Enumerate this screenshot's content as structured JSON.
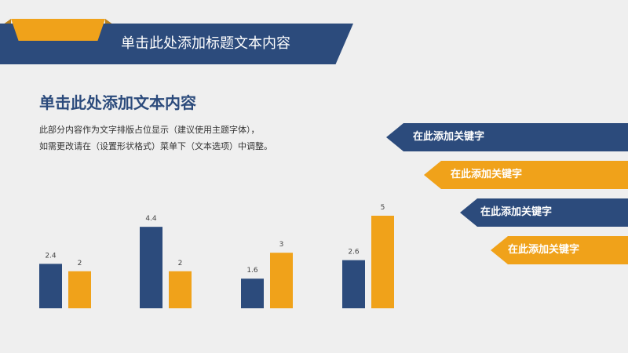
{
  "title": "单击此处添加标题文本内容",
  "heading": "单击此处添加文本内容",
  "description": [
    "此部分内容作为文字排版占位显示（建议使用主题字体），",
    "如需更改请在（设置形状格式）菜单下（文本选项）中调整。"
  ],
  "keywords": [
    {
      "label": "在此添加关键字",
      "color": "#2c4b7c"
    },
    {
      "label": "在此添加关键字",
      "color": "#f0a21a"
    },
    {
      "label": "在此添加关键字",
      "color": "#2c4b7c"
    },
    {
      "label": "在此添加关键字",
      "color": "#f0a21a"
    }
  ],
  "colors": {
    "blue": "#2c4b7c",
    "orange": "#f0a21a",
    "background": "#efefef"
  },
  "chart_data": {
    "type": "bar",
    "categories": [
      "",
      "",
      "",
      ""
    ],
    "series": [
      {
        "values": [
          2.4,
          4.4,
          1.6,
          2.6
        ],
        "color": "#2c4b7c",
        "labels": [
          "2.4",
          "4.4",
          "1.6",
          "2.6"
        ]
      },
      {
        "values": [
          2,
          2,
          3,
          5
        ],
        "color": "#f0a21a",
        "labels": [
          "2",
          "2",
          "3",
          "5"
        ]
      }
    ],
    "ylim": [
      0,
      5
    ],
    "grid": false,
    "legend": "none"
  }
}
